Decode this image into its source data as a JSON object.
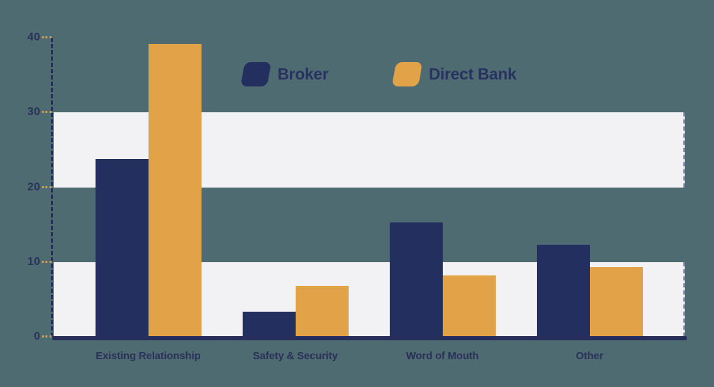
{
  "page": {
    "background_color": "#4E6B72"
  },
  "chart_data": {
    "type": "bar",
    "title": "",
    "xlabel": "",
    "ylabel": "",
    "categories": [
      "Existing Relationship",
      "Safety & Security",
      "Word of Mouth",
      "Other"
    ],
    "series": [
      {
        "name": "Broker",
        "color": "#232F5F",
        "values": [
          23.8,
          3.4,
          15.3,
          12.3
        ]
      },
      {
        "name": "Direct Bank",
        "color": "#E2A248",
        "values": [
          39.2,
          6.8,
          8.2,
          9.3
        ]
      }
    ],
    "ylim": [
      0,
      40
    ],
    "yticks": [
      0,
      10,
      20,
      30,
      40
    ],
    "shaded_bands": [
      [
        0,
        10
      ],
      [
        20,
        30
      ]
    ],
    "band_color": "#F2F2F4",
    "grid": "off",
    "legend_position": "top-center"
  },
  "axis": {
    "axis_line_color": "#272E5B",
    "baseline_color": "#272E5B",
    "tick_color": "#CC9A4E",
    "label_color": "#2A3158",
    "legend_text_color": "#28325F"
  }
}
